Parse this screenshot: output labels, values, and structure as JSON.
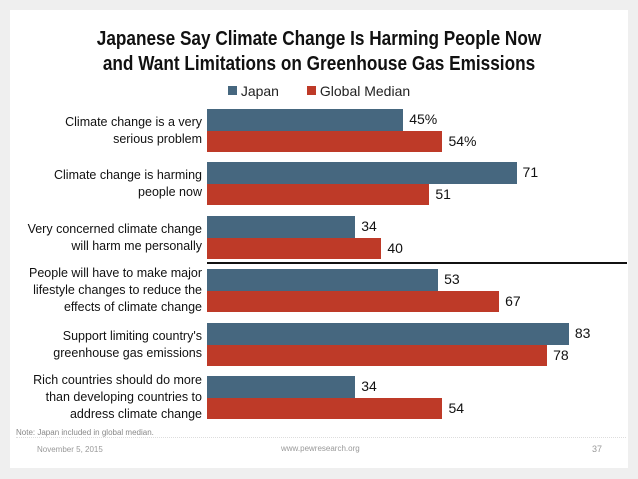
{
  "slide": {
    "note": "Note: Japan included in global median.",
    "date": "November 5, 2015",
    "url": "www.pewresearch.org",
    "page_number": "37"
  },
  "colors": {
    "japan": "#46677f",
    "global": "#be3a28",
    "background": "#efefef",
    "card": "#ffffff"
  },
  "chart_data": {
    "type": "bar",
    "orientation": "horizontal",
    "title": "Japanese Say Climate Change Is Harming People Now and Want Limitations on Greenhouse Gas Emissions",
    "title_lines": [
      "Japanese Say Climate Change Is Harming People Now",
      "and Want Limitations on Greenhouse Gas Emissions"
    ],
    "xlabel": "",
    "ylabel": "",
    "xlim": [
      0,
      100
    ],
    "grid": false,
    "legend_position": "top-center",
    "categories": [
      "Climate change is a very serious problem",
      "Climate change is harming people now",
      "Very concerned climate change will harm me personally",
      "People will have to make major lifestyle changes to reduce the effects of climate change",
      "Support limiting country's greenhouse gas emissions",
      "Rich countries should do more than developing countries to address climate change"
    ],
    "category_lines": [
      [
        "Climate change is a very",
        "serious problem"
      ],
      [
        "Climate change is harming",
        "people now"
      ],
      [
        "Very concerned climate change",
        "will harm me personally"
      ],
      [
        "People will have to make major",
        "lifestyle changes to reduce the",
        "effects of climate change"
      ],
      [
        "Support limiting country's",
        "greenhouse gas emissions"
      ],
      [
        "Rich countries should do more",
        "than developing countries to",
        "address climate change"
      ]
    ],
    "series": [
      {
        "name": "Japan",
        "values": [
          45,
          71,
          34,
          53,
          83,
          34
        ],
        "labels": [
          "45%",
          "71",
          "34",
          "53",
          "83",
          "34"
        ]
      },
      {
        "name": "Global Median",
        "values": [
          54,
          51,
          40,
          67,
          78,
          54
        ],
        "labels": [
          "54%",
          "51",
          "40",
          "67",
          "78",
          "54"
        ]
      }
    ],
    "divider_after_category_index": 2
  }
}
